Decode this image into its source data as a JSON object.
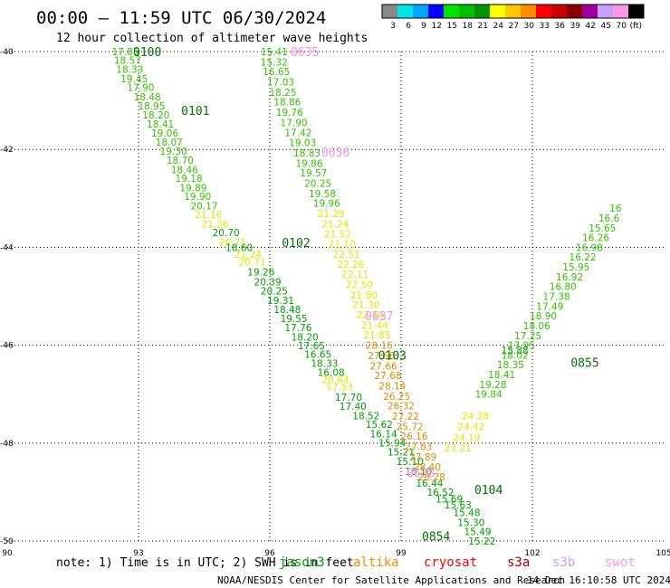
{
  "header": {
    "title": "00:00 – 11:59 UTC 06/30/2024",
    "subtitle": "12 hour collection of altimeter wave heights"
  },
  "colorbar": {
    "bins": [
      {
        "color": "#888888",
        "label": "3"
      },
      {
        "color": "#00e5e5",
        "label": "6"
      },
      {
        "color": "#00a5ff",
        "label": "9"
      },
      {
        "color": "#0000ff",
        "label": "12"
      },
      {
        "color": "#00e100",
        "label": "15"
      },
      {
        "color": "#00c000",
        "label": "18"
      },
      {
        "color": "#009400",
        "label": "21"
      },
      {
        "color": "#ffff00",
        "label": "24"
      },
      {
        "color": "#ffc800",
        "label": "27"
      },
      {
        "color": "#ff8c00",
        "label": "30"
      },
      {
        "color": "#ff0000",
        "label": "33"
      },
      {
        "color": "#c80000",
        "label": "36"
      },
      {
        "color": "#8c0000",
        "label": "39"
      },
      {
        "color": "#a000a0",
        "label": "42"
      },
      {
        "color": "#c8a0ff",
        "label": "45"
      },
      {
        "color": "#ff96e6",
        "label": "70"
      },
      {
        "color": "#000000",
        "label": "(ft)"
      }
    ]
  },
  "footer": {
    "note": "note: 1) Time is in UTC; 2) SWH is in feet",
    "credit": "NOAA/NESDIS Center for Satellite Applications and Research",
    "timestamp": "14 Dec 16:10:58 UTC 2024",
    "legend": [
      {
        "name": "jason3",
        "color": "#00a000"
      },
      {
        "name": "altika",
        "color": "#ff8c00"
      },
      {
        "name": "cryosat",
        "color": "#ff0000"
      },
      {
        "name": "s3a",
        "color": "#a00000"
      },
      {
        "name": "s3b",
        "color": "#c8a0ff"
      },
      {
        "name": "swot",
        "color": "#ff96e6"
      }
    ]
  },
  "chart_data": {
    "type": "scatter",
    "xlim": [
      90,
      105
    ],
    "ylim": [
      -50,
      -40
    ],
    "xticks": [
      90,
      93,
      96,
      99,
      102,
      105
    ],
    "yticks": [
      -40,
      -42,
      -44,
      -46,
      -48,
      -50
    ],
    "grid": true,
    "colors": {
      "green": "#00a000",
      "lightgreen": "#34c400",
      "yellow": "#e8e800",
      "orange": "#e08c00",
      "pink": "#ff8ce0",
      "darkgreen": "#007000"
    },
    "tracks": [
      {
        "color": "lightgreen",
        "points": [
          {
            "x": 92.7,
            "y": -40.0,
            "v": "17.85"
          },
          {
            "x": 92.75,
            "y": -40.18,
            "v": "18.57"
          },
          {
            "x": 92.8,
            "y": -40.36,
            "v": "18.33"
          },
          {
            "x": 92.9,
            "y": -40.55,
            "v": "19.45"
          },
          {
            "x": 93.05,
            "y": -40.73,
            "v": "17.90"
          },
          {
            "x": 93.2,
            "y": -40.92,
            "v": "18.48"
          },
          {
            "x": 93.3,
            "y": -41.11,
            "v": "18.95"
          },
          {
            "x": 93.4,
            "y": -41.29,
            "v": "18.20"
          },
          {
            "x": 93.5,
            "y": -41.48,
            "v": "18.41"
          },
          {
            "x": 93.6,
            "y": -41.66,
            "v": "19.06"
          },
          {
            "x": 93.7,
            "y": -41.85,
            "v": "18.07"
          },
          {
            "x": 93.8,
            "y": -42.03,
            "v": "19.30"
          },
          {
            "x": 93.95,
            "y": -42.22,
            "v": "18.70"
          },
          {
            "x": 94.05,
            "y": -42.41,
            "v": "18.46"
          },
          {
            "x": 94.15,
            "y": -42.59,
            "v": "19.18"
          },
          {
            "x": 94.25,
            "y": -42.78,
            "v": "19.89"
          },
          {
            "x": 94.35,
            "y": -42.96,
            "v": "19.90"
          },
          {
            "x": 94.5,
            "y": -43.15,
            "v": "20.17"
          }
        ]
      },
      {
        "color": "yellow",
        "points": [
          {
            "x": 94.6,
            "y": -43.33,
            "v": "21.16"
          },
          {
            "x": 94.75,
            "y": -43.52,
            "v": "21.26"
          }
        ]
      },
      {
        "color": "green",
        "points": [
          {
            "x": 95.0,
            "y": -43.7,
            "v": "20.70"
          }
        ]
      },
      {
        "color": "yellow",
        "points": [
          {
            "x": 95.15,
            "y": -43.89,
            "v": "20.71"
          }
        ]
      },
      {
        "color": "green",
        "points": [
          {
            "x": 95.3,
            "y": -44.0,
            "v": "18.60"
          }
        ]
      },
      {
        "color": "yellow",
        "points": [
          {
            "x": 95.5,
            "y": -44.14,
            "v": "21.24"
          },
          {
            "x": 95.6,
            "y": -44.3,
            "v": "20.71"
          }
        ]
      },
      {
        "color": "green",
        "points": [
          {
            "x": 95.8,
            "y": -44.5,
            "v": "19.26"
          },
          {
            "x": 95.95,
            "y": -44.7,
            "v": "20.39"
          },
          {
            "x": 96.1,
            "y": -44.89,
            "v": "20.25"
          },
          {
            "x": 96.25,
            "y": -45.08,
            "v": "19.31"
          },
          {
            "x": 96.4,
            "y": -45.27,
            "v": "18.48"
          },
          {
            "x": 96.55,
            "y": -45.45,
            "v": "19.55"
          },
          {
            "x": 96.65,
            "y": -45.64,
            "v": "17.76"
          },
          {
            "x": 96.8,
            "y": -45.83,
            "v": "18.20"
          },
          {
            "x": 96.95,
            "y": -46.01,
            "v": "17.65"
          },
          {
            "x": 97.1,
            "y": -46.18,
            "v": "16.65"
          },
          {
            "x": 97.25,
            "y": -46.37,
            "v": "18.33"
          },
          {
            "x": 97.4,
            "y": -46.55,
            "v": "16.08"
          }
        ]
      },
      {
        "color": "yellow",
        "points": [
          {
            "x": 97.5,
            "y": -46.7,
            "v": "20.64"
          },
          {
            "x": 97.6,
            "y": -46.85,
            "v": "17.53"
          }
        ]
      },
      {
        "color": "green",
        "points": [
          {
            "x": 97.8,
            "y": -47.06,
            "v": "17.70"
          },
          {
            "x": 97.9,
            "y": -47.25,
            "v": "17.40"
          },
          {
            "x": 98.2,
            "y": -47.44,
            "v": "18.52"
          },
          {
            "x": 98.5,
            "y": -47.62,
            "v": "15.62"
          },
          {
            "x": 98.6,
            "y": -47.81,
            "v": "16.14"
          },
          {
            "x": 98.8,
            "y": -47.99,
            "v": "15.94"
          },
          {
            "x": 99.0,
            "y": -48.18,
            "v": "15.21"
          },
          {
            "x": 99.2,
            "y": -48.37,
            "v": "15.10"
          },
          {
            "x": 99.4,
            "y": -48.58,
            "v": "16.10"
          },
          {
            "x": 99.65,
            "y": -48.82,
            "v": "16.44"
          },
          {
            "x": 99.9,
            "y": -49.0,
            "v": "16.52"
          },
          {
            "x": 100.1,
            "y": -49.14,
            "v": "15.69"
          },
          {
            "x": 100.3,
            "y": -49.26,
            "v": "15.63"
          },
          {
            "x": 100.5,
            "y": -49.42,
            "v": "15.48"
          },
          {
            "x": 100.6,
            "y": -49.62,
            "v": "15.30"
          },
          {
            "x": 100.75,
            "y": -49.81,
            "v": "15.49"
          },
          {
            "x": 100.85,
            "y": -50.0,
            "v": "15.22"
          }
        ]
      },
      {
        "color": "lightgreen",
        "points": [
          {
            "x": 96.1,
            "y": -40.0,
            "v": "15.41"
          },
          {
            "x": 96.1,
            "y": -40.21,
            "v": "15.32"
          },
          {
            "x": 96.15,
            "y": -40.41,
            "v": "16.65"
          },
          {
            "x": 96.25,
            "y": -40.62,
            "v": "17.03"
          },
          {
            "x": 96.3,
            "y": -40.83,
            "v": "18.25"
          },
          {
            "x": 96.4,
            "y": -41.03,
            "v": "18.86"
          },
          {
            "x": 96.45,
            "y": -41.24,
            "v": "19.76"
          },
          {
            "x": 96.55,
            "y": -41.45,
            "v": "17.90"
          },
          {
            "x": 96.65,
            "y": -41.65,
            "v": "17.42"
          },
          {
            "x": 96.75,
            "y": -41.86,
            "v": "19.03"
          },
          {
            "x": 96.85,
            "y": -42.07,
            "v": "18.83"
          },
          {
            "x": 96.9,
            "y": -42.28,
            "v": "19.86"
          },
          {
            "x": 97.0,
            "y": -42.48,
            "v": "19.57"
          },
          {
            "x": 97.1,
            "y": -42.69,
            "v": "20.25"
          },
          {
            "x": 97.2,
            "y": -42.9,
            "v": "19.58"
          },
          {
            "x": 97.3,
            "y": -43.1,
            "v": "19.96"
          }
        ]
      },
      {
        "color": "yellow",
        "points": [
          {
            "x": 97.4,
            "y": -43.31,
            "v": "21.29"
          },
          {
            "x": 97.5,
            "y": -43.52,
            "v": "21.24"
          },
          {
            "x": 97.55,
            "y": -43.72,
            "v": "21.52"
          },
          {
            "x": 97.65,
            "y": -43.93,
            "v": "21.10"
          },
          {
            "x": 97.75,
            "y": -44.14,
            "v": "22.51"
          },
          {
            "x": 97.85,
            "y": -44.34,
            "v": "22.26"
          },
          {
            "x": 97.95,
            "y": -44.55,
            "v": "22.11"
          },
          {
            "x": 98.05,
            "y": -44.76,
            "v": "22.50"
          },
          {
            "x": 98.15,
            "y": -44.97,
            "v": "21.80"
          },
          {
            "x": 98.2,
            "y": -45.17,
            "v": "21.30"
          },
          {
            "x": 98.3,
            "y": -45.38,
            "v": "22.14"
          },
          {
            "x": 98.4,
            "y": -45.59,
            "v": "21.44"
          },
          {
            "x": 98.45,
            "y": -45.79,
            "v": "21.85"
          }
        ]
      },
      {
        "color": "orange",
        "points": [
          {
            "x": 98.5,
            "y": -46.0,
            "v": "28.16"
          },
          {
            "x": 98.55,
            "y": -46.21,
            "v": "27.66"
          },
          {
            "x": 98.6,
            "y": -46.42,
            "v": "27.66"
          },
          {
            "x": 98.7,
            "y": -46.62,
            "v": "27.68"
          },
          {
            "x": 98.8,
            "y": -46.83,
            "v": "28.14"
          },
          {
            "x": 98.9,
            "y": -47.04,
            "v": "26.25"
          },
          {
            "x": 99.0,
            "y": -47.24,
            "v": "26.32"
          },
          {
            "x": 99.1,
            "y": -47.45,
            "v": "27.22"
          },
          {
            "x": 99.2,
            "y": -47.66,
            "v": "25.72"
          },
          {
            "x": 99.3,
            "y": -47.86,
            "v": "26.16"
          },
          {
            "x": 99.4,
            "y": -48.07,
            "v": "27.83"
          },
          {
            "x": 99.5,
            "y": -48.28,
            "v": "27.89"
          },
          {
            "x": 99.6,
            "y": -48.48,
            "v": "28.40"
          },
          {
            "x": 99.7,
            "y": -48.69,
            "v": "28.28"
          }
        ]
      },
      {
        "color": "yellow",
        "points": [
          {
            "x": 100.3,
            "y": -48.1,
            "v": "23.21"
          },
          {
            "x": 100.5,
            "y": -47.88,
            "v": "24.19"
          },
          {
            "x": 100.6,
            "y": -47.66,
            "v": "24.42"
          },
          {
            "x": 100.7,
            "y": -47.44,
            "v": "24.28"
          }
        ]
      },
      {
        "color": "lightgreen",
        "points": [
          {
            "x": 101.0,
            "y": -47.0,
            "v": "19.84"
          },
          {
            "x": 101.1,
            "y": -46.8,
            "v": "19.28"
          },
          {
            "x": 101.3,
            "y": -46.6,
            "v": "18.41"
          },
          {
            "x": 101.5,
            "y": -46.4,
            "v": "18.35"
          },
          {
            "x": 101.6,
            "y": -46.2,
            "v": "18.02"
          },
          {
            "x": 101.75,
            "y": -46.0,
            "v": "17.95"
          },
          {
            "x": 101.9,
            "y": -45.8,
            "v": "17.25"
          },
          {
            "x": 102.1,
            "y": -45.6,
            "v": "18.06"
          },
          {
            "x": 102.25,
            "y": -45.4,
            "v": "18.90"
          },
          {
            "x": 102.4,
            "y": -45.2,
            "v": "17.49"
          },
          {
            "x": 102.55,
            "y": -45.0,
            "v": "17.38"
          },
          {
            "x": 102.7,
            "y": -44.8,
            "v": "16.80"
          },
          {
            "x": 102.85,
            "y": -44.6,
            "v": "16.92"
          },
          {
            "x": 103.0,
            "y": -44.4,
            "v": "15.95"
          },
          {
            "x": 103.15,
            "y": -44.2,
            "v": "16.22"
          },
          {
            "x": 103.3,
            "y": -44.0,
            "v": "16.98"
          },
          {
            "x": 103.45,
            "y": -43.8,
            "v": "16.26"
          },
          {
            "x": 103.6,
            "y": -43.6,
            "v": "15.65"
          },
          {
            "x": 103.75,
            "y": -43.4,
            "v": "16.6"
          },
          {
            "x": 103.9,
            "y": -43.2,
            "v": "16"
          }
        ]
      },
      {
        "color": "green",
        "points": [
          {
            "x": 101.6,
            "y": -46.1,
            "v": "15.88"
          }
        ]
      }
    ],
    "pass_labels": [
      {
        "x": 93.2,
        "y": -40.0,
        "text": "0100",
        "color": "darkgreen"
      },
      {
        "x": 94.3,
        "y": -41.2,
        "text": "0101",
        "color": "darkgreen"
      },
      {
        "x": 96.6,
        "y": -43.9,
        "text": "0102",
        "color": "darkgreen"
      },
      {
        "x": 98.8,
        "y": -46.2,
        "text": "0103",
        "color": "darkgreen"
      },
      {
        "x": 101.0,
        "y": -48.95,
        "text": "0104",
        "color": "darkgreen"
      },
      {
        "x": 99.8,
        "y": -49.9,
        "text": "0854",
        "color": "darkgreen"
      },
      {
        "x": 103.2,
        "y": -46.35,
        "text": "0855",
        "color": "darkgreen"
      },
      {
        "x": 96.8,
        "y": -40.0,
        "text": "0635",
        "color": "pink"
      },
      {
        "x": 97.5,
        "y": -42.05,
        "text": "0636",
        "color": "pink"
      },
      {
        "x": 98.5,
        "y": -45.4,
        "text": "0637",
        "color": "pink"
      },
      {
        "x": 99.45,
        "y": -48.6,
        "text": "0638",
        "color": "pink"
      }
    ]
  }
}
